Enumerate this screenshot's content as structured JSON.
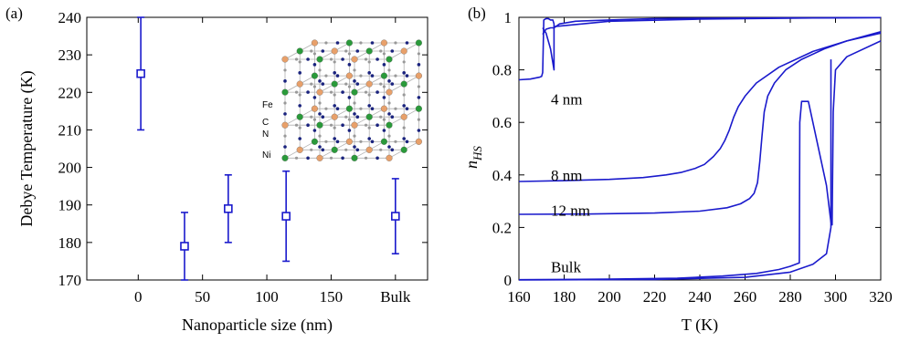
{
  "chart_data": [
    {
      "type": "scatter",
      "panel_label": "(a)",
      "xlabel": "Nanoparticle size (nm)",
      "ylabel": "Debye Temperature (K)",
      "ylim": [
        170,
        240
      ],
      "xlim": [
        -40,
        225
      ],
      "x_ticks": [
        0,
        50,
        100,
        150
      ],
      "x_tick_labels": [
        "0",
        "50",
        "100",
        "150"
      ],
      "extra_tick": {
        "x": 200,
        "label": "Bulk"
      },
      "y_ticks": [
        170,
        180,
        190,
        200,
        210,
        220,
        230,
        240
      ],
      "points": [
        {
          "x": 2,
          "y": 225,
          "err_low": 210,
          "err_high": 240
        },
        {
          "x": 36,
          "y": 179,
          "err_low": 170,
          "err_high": 188
        },
        {
          "x": 70,
          "y": 189,
          "err_low": 180,
          "err_high": 198
        },
        {
          "x": 115,
          "y": 187,
          "err_low": 175,
          "err_high": 199
        },
        {
          "x": 200,
          "y": 187,
          "err_low": 177,
          "err_high": 197
        }
      ],
      "color": "#1a1acc",
      "inset": {
        "description_icon": "lattice-structure",
        "labels": [
          "Fe",
          "C",
          "N",
          "Ni"
        ],
        "colors": {
          "Fe": "#e8a06a",
          "Ni": "#2a9a3a",
          "C": "#999999",
          "N": "#1a237e"
        }
      }
    },
    {
      "type": "line",
      "panel_label": "(b)",
      "xlabel": "T (K)",
      "ylabel_main": "n",
      "ylabel_sub": "HS",
      "xlim": [
        160,
        320
      ],
      "ylim": [
        0,
        1
      ],
      "x_ticks": [
        160,
        180,
        200,
        220,
        240,
        260,
        280,
        300,
        320
      ],
      "y_ticks": [
        0,
        0.2,
        0.4,
        0.6,
        0.8,
        1
      ],
      "y_tick_labels": [
        "0",
        "0.2",
        "0.4",
        "0.6",
        "0.8",
        "1"
      ],
      "color": "#1a1acc",
      "series": [
        {
          "name": "4 nm",
          "label_pos": [
            162,
            0.69
          ],
          "x": [
            160,
            165,
            169,
            170,
            170.5,
            171,
            172,
            173,
            174,
            175,
            175.5,
            175.5,
            178,
            185,
            200,
            220,
            250,
            280,
            320
          ],
          "y": [
            0.762,
            0.765,
            0.772,
            0.775,
            0.79,
            0.99,
            0.995,
            0.995,
            0.99,
            0.99,
            0.975,
            0.96,
            0.975,
            0.985,
            0.99,
            0.995,
            0.997,
            0.998,
            0.999
          ]
        },
        {
          "name": "4 nm return",
          "label": "",
          "x": [
            170.5,
            172,
            174,
            175.5,
            176,
            200,
            240,
            280,
            320
          ],
          "y": [
            0.935,
            0.955,
            0.96,
            0.96,
            0.965,
            0.985,
            0.993,
            0.997,
            0.999
          ]
        },
        {
          "name": "4 nm drop",
          "label": "",
          "x": [
            175.5,
            175.5,
            174,
            172,
            170.5
          ],
          "y": [
            0.96,
            0.8,
            0.88,
            0.94,
            0.96
          ]
        },
        {
          "name": "8 nm",
          "label_pos": [
            162,
            0.4
          ],
          "x": [
            160,
            180,
            200,
            215,
            225,
            232,
            238,
            242,
            246,
            249,
            251,
            253,
            255,
            257,
            260,
            265,
            275,
            290,
            305,
            320
          ],
          "y": [
            0.375,
            0.378,
            0.383,
            0.39,
            0.4,
            0.41,
            0.425,
            0.44,
            0.47,
            0.5,
            0.53,
            0.57,
            0.62,
            0.66,
            0.7,
            0.75,
            0.81,
            0.87,
            0.91,
            0.94
          ]
        },
        {
          "name": "12 nm",
          "label_pos": [
            162,
            0.265
          ],
          "x": [
            160,
            190,
            220,
            240,
            252,
            258,
            262,
            264,
            265.5,
            266.5,
            267.5,
            268.5,
            270,
            273,
            278,
            285,
            295,
            305,
            320
          ],
          "y": [
            0.25,
            0.251,
            0.255,
            0.262,
            0.275,
            0.29,
            0.31,
            0.33,
            0.37,
            0.45,
            0.55,
            0.64,
            0.7,
            0.75,
            0.8,
            0.84,
            0.88,
            0.91,
            0.945
          ]
        },
        {
          "name": "Bulk",
          "label_pos": [
            162,
            0.05
          ],
          "x": [
            160,
            200,
            230,
            250,
            265,
            275,
            280,
            284,
            284,
            284.2,
            285,
            288,
            292,
            296,
            298,
            298.5,
            299,
            300,
            305,
            320
          ],
          "y": [
            0.001,
            0.003,
            0.007,
            0.015,
            0.025,
            0.04,
            0.052,
            0.065,
            0.065,
            0.6,
            0.68,
            0.68,
            0.52,
            0.36,
            0.22,
            0.21,
            0.64,
            0.8,
            0.85,
            0.91
          ]
        },
        {
          "name": "Bulk branch",
          "label": "",
          "x": [
            160,
            220,
            260,
            280,
            290,
            296,
            298,
            298
          ],
          "y": [
            0.0,
            0.002,
            0.01,
            0.03,
            0.06,
            0.1,
            0.2,
            0.84
          ]
        }
      ]
    }
  ]
}
